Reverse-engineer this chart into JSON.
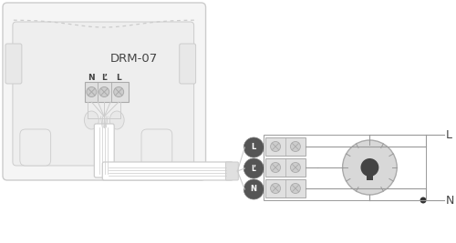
{
  "bg_color": "#ffffff",
  "line_color": "#cccccc",
  "dark_line": "#aaaaaa",
  "text_color": "#444444",
  "title": "DRM-07",
  "label_N": "N",
  "label_Lp": "L’",
  "label_L": "L",
  "terminal_labels": [
    "L",
    "L’",
    "N"
  ],
  "circle_color": "#555555",
  "box_fill": "#f5f5f5",
  "board_fill": "#eeeeee",
  "screw_fill": "#cccccc",
  "wire_color": "#cccccc",
  "dimmer_fill": "#d8d8d8",
  "dimmer_edge": "#aaaaaa",
  "bulb_color": "#444444",
  "dot_color": "#333333",
  "conn_line": "#999999"
}
